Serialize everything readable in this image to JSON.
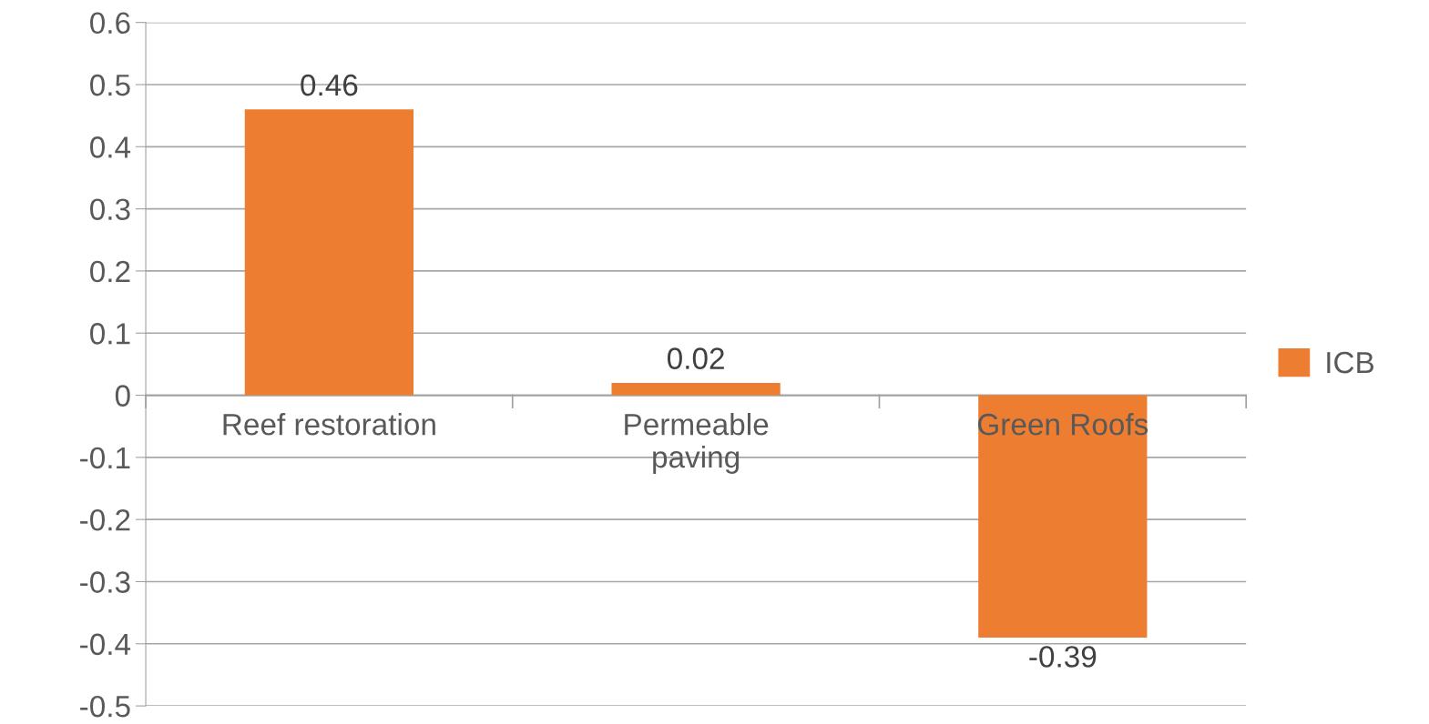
{
  "chart_data": {
    "type": "bar",
    "categories": [
      "Reef restoration",
      "Permeable\npaving",
      "Green Roofs"
    ],
    "series": [
      {
        "name": "ICB",
        "color": "#ed7d31",
        "values": [
          0.46,
          0.02,
          -0.39
        ]
      }
    ],
    "ylim": [
      -0.5,
      0.6
    ],
    "yticks": [
      {
        "value": -0.5,
        "label": "-0.5"
      },
      {
        "value": -0.4,
        "label": "-0.4"
      },
      {
        "value": -0.3,
        "label": "-0.3"
      },
      {
        "value": -0.2,
        "label": "-0.2"
      },
      {
        "value": -0.1,
        "label": "-0.1"
      },
      0,
      0.1,
      0.2,
      0.3,
      0.4,
      0.5,
      0.6
    ],
    "grid": "y",
    "legend": "right",
    "data_labels": true
  }
}
